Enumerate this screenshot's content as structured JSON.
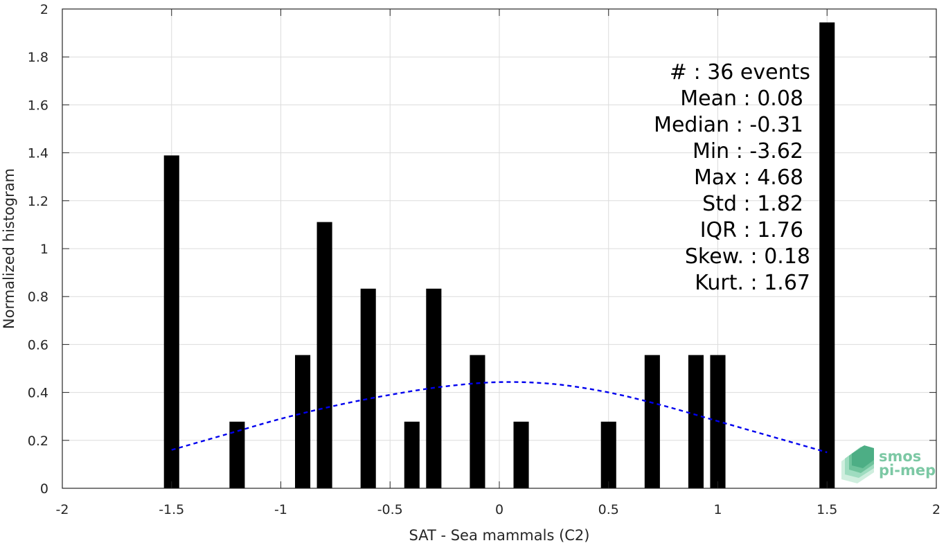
{
  "chart_data": {
    "type": "bar",
    "xlabel": "SAT - Sea mammals (C2)",
    "ylabel": "Normalized histogram",
    "xlim": [
      -2,
      2
    ],
    "ylim": [
      0,
      2
    ],
    "grid": true,
    "x_ticks": [
      -2,
      -1.5,
      -1,
      -0.5,
      0,
      0.5,
      1,
      1.5,
      2
    ],
    "x_tick_labels": [
      "-2",
      "-1.5",
      "-1",
      "-0.5",
      "0",
      "0.5",
      "1",
      "1.5",
      "2"
    ],
    "y_ticks": [
      0,
      0.2,
      0.4,
      0.6,
      0.8,
      1,
      1.2,
      1.4,
      1.6,
      1.8,
      2
    ],
    "y_tick_labels": [
      "0",
      "0.2",
      "0.4",
      "0.6",
      "0.8",
      "1",
      "1.2",
      "1.4",
      "1.6",
      "1.8",
      "2"
    ],
    "bar_color": "#000000",
    "bar_width": 0.07,
    "bars": [
      {
        "x": -1.5,
        "value": 1.389
      },
      {
        "x": -1.2,
        "value": 0.278
      },
      {
        "x": -0.9,
        "value": 0.556
      },
      {
        "x": -0.8,
        "value": 1.111
      },
      {
        "x": -0.6,
        "value": 0.833
      },
      {
        "x": -0.4,
        "value": 0.278
      },
      {
        "x": -0.3,
        "value": 0.833
      },
      {
        "x": -0.1,
        "value": 0.556
      },
      {
        "x": 0.1,
        "value": 0.278
      },
      {
        "x": 0.5,
        "value": 0.278
      },
      {
        "x": 0.7,
        "value": 0.556
      },
      {
        "x": 0.9,
        "value": 0.556
      },
      {
        "x": 1.0,
        "value": 0.556
      },
      {
        "x": 1.5,
        "value": 1.944
      }
    ],
    "fit_curve": {
      "style": "dashed",
      "color": "#0000ee",
      "x": [
        -1.5,
        -1.25,
        -1.0,
        -0.75,
        -0.5,
        -0.25,
        0.0,
        0.25,
        0.5,
        0.75,
        1.0,
        1.25,
        1.5
      ],
      "y": [
        0.16,
        0.225,
        0.29,
        0.345,
        0.39,
        0.425,
        0.443,
        0.435,
        0.4,
        0.345,
        0.28,
        0.215,
        0.15
      ]
    },
    "stats": [
      "#  : 36 events",
      "Mean : 0.08",
      "Median : -0.31",
      "Min : -3.62",
      "Max : 4.68",
      "Std : 1.82",
      "IQR : 1.76",
      "Skew. : 0.18",
      "Kurt. : 1.67"
    ]
  },
  "logo": {
    "line1": "smos",
    "line2": "pi-mep",
    "color": "#7cc8a4"
  }
}
